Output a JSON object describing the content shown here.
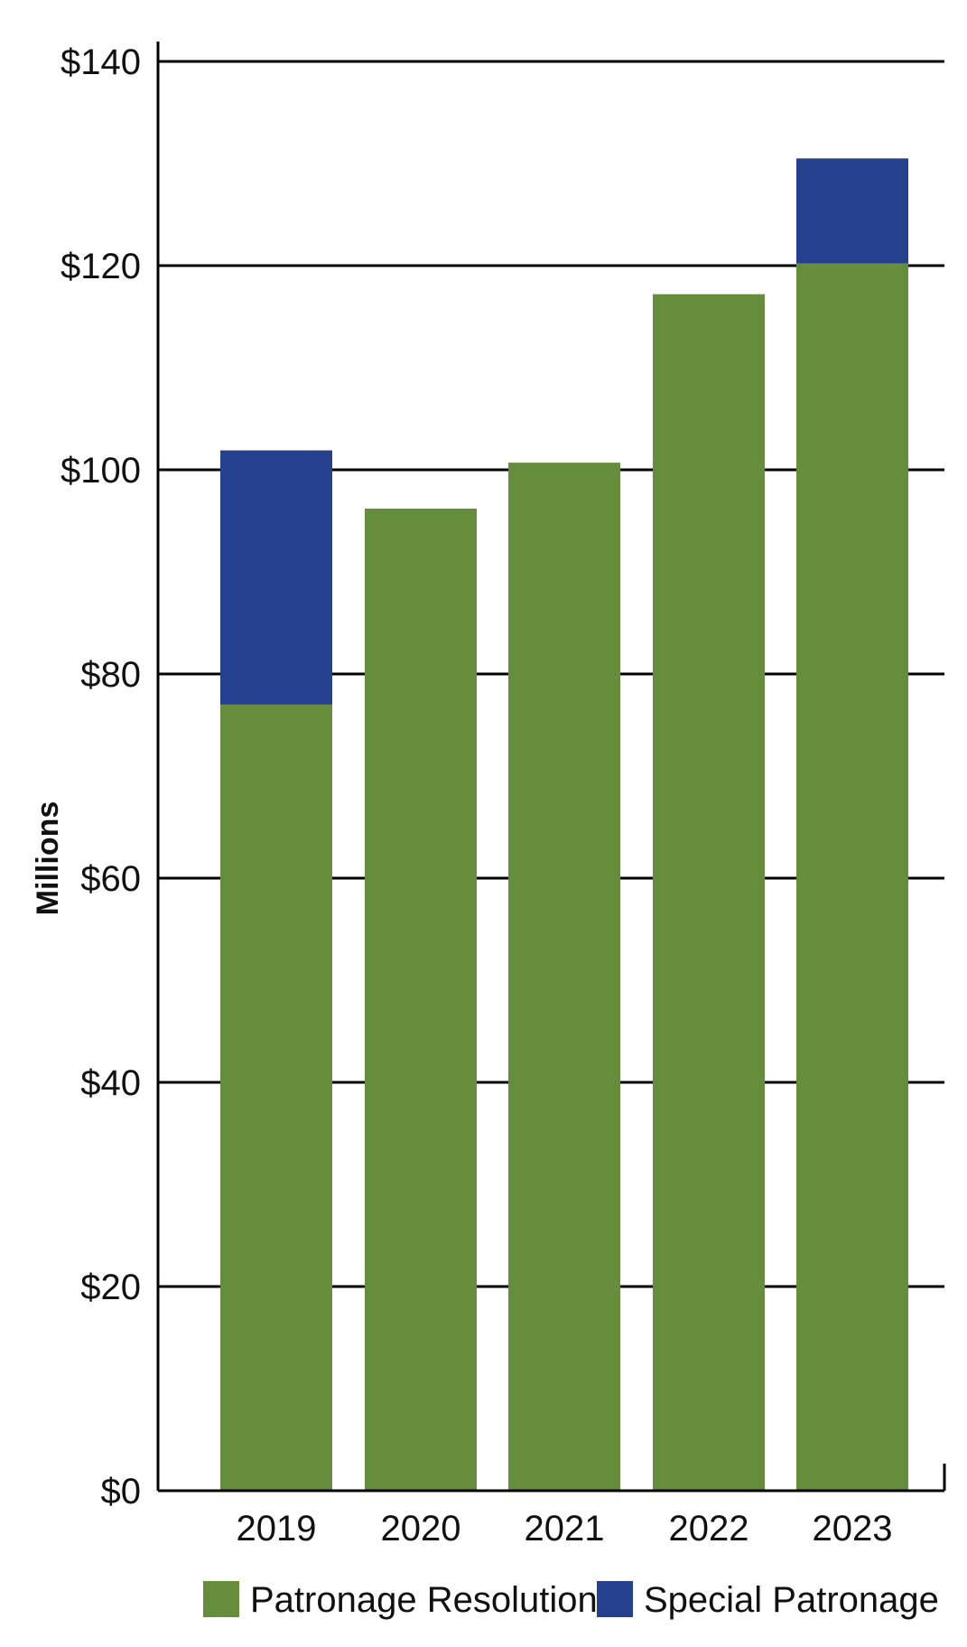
{
  "chart_data": {
    "type": "bar",
    "stacked": true,
    "title": "",
    "xlabel": "",
    "ylabel": "Millions",
    "ylim": [
      0,
      140
    ],
    "yticks": [
      0,
      20,
      40,
      60,
      80,
      100,
      120,
      140
    ],
    "ytick_labels": [
      "$0",
      "$20",
      "$40",
      "$60",
      "$80",
      "$100",
      "$120",
      "$140"
    ],
    "categories": [
      "2019",
      "2020",
      "2021",
      "2022",
      "2023"
    ],
    "series": [
      {
        "name": "Patronage Resolutions",
        "color": "#668d3c",
        "values": [
          77,
          96.2,
          100.7,
          117.2,
          120.2
        ]
      },
      {
        "name": "Special Patronage",
        "color": "#25408f",
        "values": [
          24.9,
          0,
          0,
          0,
          10.3
        ]
      }
    ],
    "grid": true,
    "legend_position": "bottom"
  }
}
